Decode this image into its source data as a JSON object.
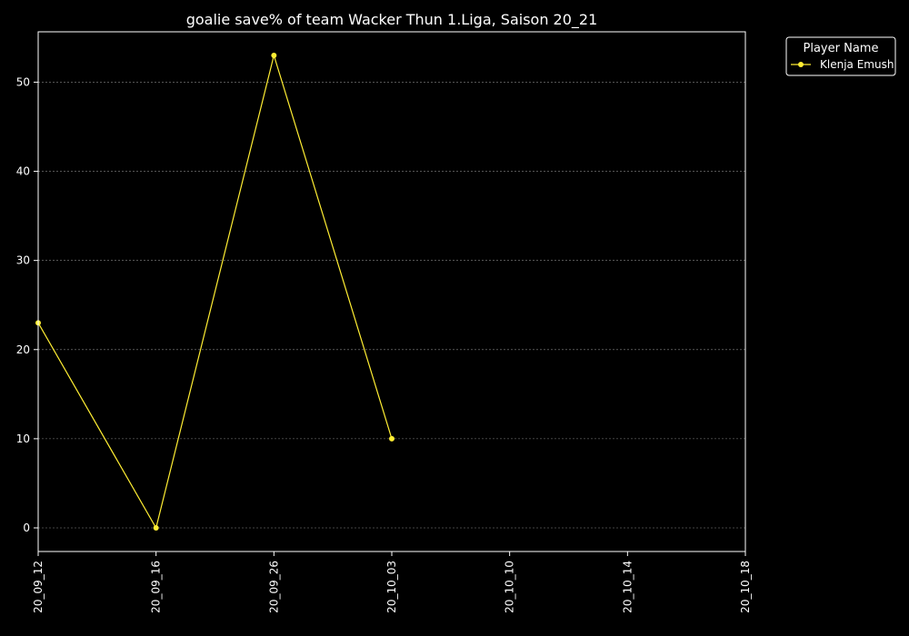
{
  "chart_data": {
    "type": "line",
    "title": "goalie save% of team Wacker Thun 1.Liga, Saison 20_21",
    "xlabel": "",
    "ylabel": "",
    "x_categories": [
      "20_09_12",
      "20_09_16",
      "20_09_26",
      "20_10_03",
      "20_10_10",
      "20_10_14",
      "20_10_18"
    ],
    "yticks": [
      0,
      10,
      20,
      30,
      40,
      50
    ],
    "ylim": [
      -2.65,
      55.65
    ],
    "grid": true,
    "legend": {
      "title": "Player Name",
      "placement": "upper-right-outside"
    },
    "series": [
      {
        "name": "Klenja Emush",
        "color": "#ffee33",
        "points": [
          {
            "x": "20_09_12",
            "y": 23
          },
          {
            "x": "20_09_16",
            "y": 0
          },
          {
            "x": "20_09_26",
            "y": 53
          },
          {
            "x": "20_10_03",
            "y": 10
          }
        ]
      }
    ]
  }
}
